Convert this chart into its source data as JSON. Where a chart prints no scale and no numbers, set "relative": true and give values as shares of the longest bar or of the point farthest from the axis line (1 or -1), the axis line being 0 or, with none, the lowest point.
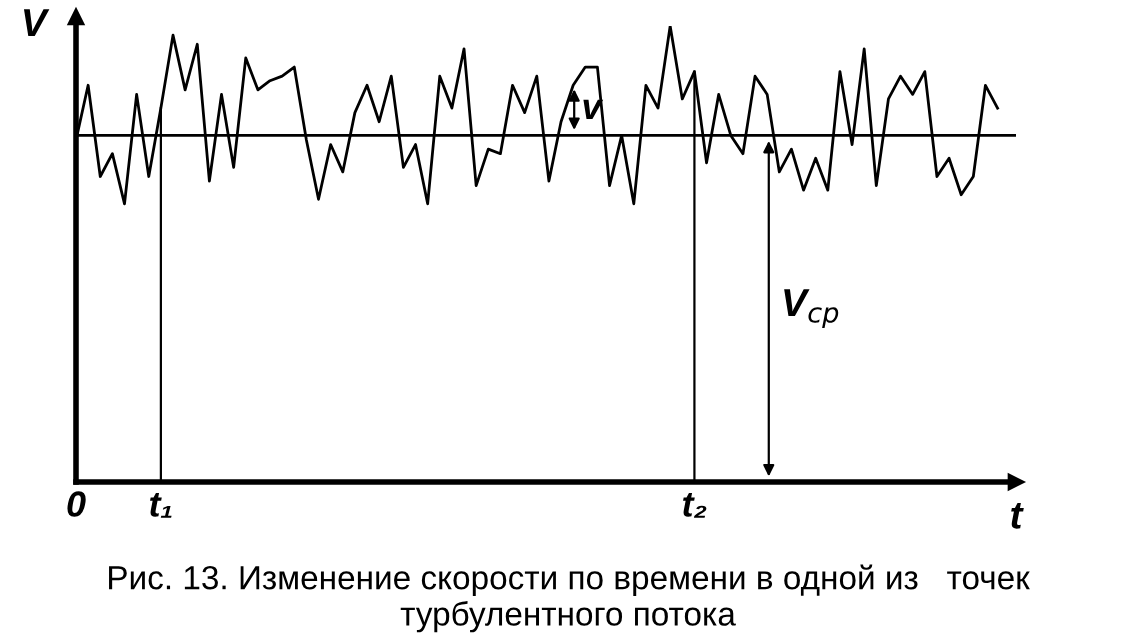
{
  "chart_data": {
    "type": "line",
    "relative": true,
    "xlabel": "t",
    "ylabel": "V",
    "categories": [
      "0",
      null,
      null,
      null,
      null,
      null,
      null,
      "t₁",
      null,
      null,
      null,
      null,
      null,
      null,
      null,
      null,
      null,
      null,
      null,
      null,
      null,
      null,
      null,
      null,
      null,
      null,
      null,
      null,
      null,
      null,
      null,
      null,
      null,
      null,
      null,
      null,
      null,
      null,
      null,
      null,
      null,
      null,
      null,
      null,
      null,
      null,
      null,
      null,
      null,
      null,
      null,
      "t₂",
      null,
      null,
      null,
      null,
      null,
      null,
      null,
      null,
      null,
      null,
      null,
      null,
      null,
      null,
      null,
      null,
      null,
      null,
      null,
      null,
      null,
      null,
      null,
      null,
      null
    ],
    "series": [
      {
        "color": "#000000",
        "values": [
          0.75,
          0.87,
          0.67,
          0.72,
          0.61,
          0.85,
          0.67,
          0.82,
          0.98,
          0.86,
          0.96,
          0.66,
          0.85,
          0.69,
          0.93,
          0.86,
          0.88,
          0.89,
          0.91,
          0.75,
          0.62,
          0.74,
          0.68,
          0.81,
          0.87,
          0.79,
          0.89,
          0.69,
          0.74,
          0.61,
          0.89,
          0.82,
          0.95,
          0.65,
          0.73,
          0.72,
          0.87,
          0.81,
          0.89,
          0.66,
          0.79,
          0.87,
          0.91,
          0.91,
          0.65,
          0.76,
          0.61,
          0.87,
          0.82,
          1.0,
          0.84,
          0.9,
          0.7,
          0.85,
          0.76,
          0.72,
          0.89,
          0.85,
          0.68,
          0.73,
          0.64,
          0.71,
          0.64,
          0.9,
          0.74,
          0.95,
          0.65,
          0.84,
          0.89,
          0.85,
          0.9,
          0.67,
          0.71,
          0.63,
          0.67,
          0.87,
          0.82
        ]
      }
    ],
    "ref_lines": [
      {
        "axis": "y",
        "value": 0.76,
        "color": "#000000",
        "label": "V$_{ср}$"
      },
      {
        "axis": "x",
        "value": "t₁",
        "color": "#000000"
      },
      {
        "axis": "x",
        "value": "t₂",
        "color": "#000000"
      }
    ],
    "annotations": [
      "v",
      "Рис. 13. Изменение скорости по времени в одной из   точек турбулентного потока"
    ],
    "line_style": "solid",
    "marker": "none"
  }
}
